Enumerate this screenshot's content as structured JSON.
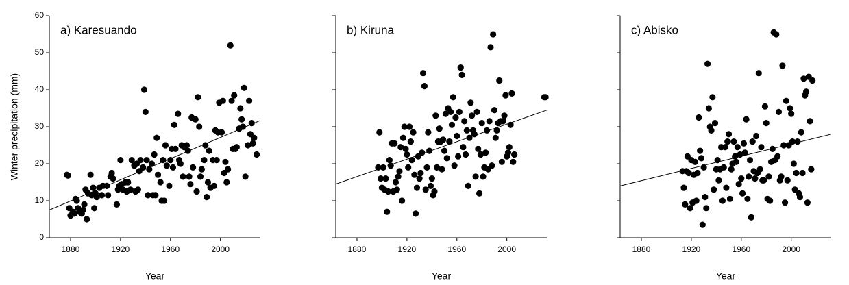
{
  "chart_data": [
    {
      "type": "scatter",
      "title": "a) Karesuando",
      "xlabel": "Year",
      "ylabel": "Winter precipitation (mm)",
      "color": "#000000",
      "show_ytick_labels": true,
      "xlim": [
        1863,
        2032
      ],
      "ylim": [
        0,
        60
      ],
      "xticks": [
        1880,
        1920,
        1960,
        2000
      ],
      "yticks": [
        0,
        10,
        20,
        30,
        40,
        50,
        60
      ],
      "x": [
        1877,
        1878,
        1879,
        1880,
        1882,
        1883,
        1884,
        1885,
        1886,
        1887,
        1889,
        1890,
        1891,
        1892,
        1893,
        1894,
        1896,
        1897,
        1898,
        1899,
        1900,
        1901,
        1903,
        1905,
        1906,
        1909,
        1910,
        1912,
        1913,
        1914,
        1917,
        1918,
        1919,
        1920,
        1921,
        1922,
        1924,
        1925,
        1926,
        1928,
        1929,
        1931,
        1932,
        1933,
        1934,
        1935,
        1936,
        1938,
        1939,
        1940,
        1941,
        1942,
        1943,
        1945,
        1946,
        1947,
        1948,
        1949,
        1950,
        1952,
        1953,
        1954,
        1955,
        1956,
        1957,
        1959,
        1960,
        1961,
        1962,
        1963,
        1964,
        1966,
        1967,
        1968,
        1969,
        1970,
        1971,
        1973,
        1974,
        1975,
        1976,
        1977,
        1978,
        1980,
        1981,
        1982,
        1983,
        1984,
        1985,
        1987,
        1988,
        1989,
        1990,
        1991,
        1992,
        1994,
        1995,
        1996,
        1997,
        1998,
        1999,
        2001,
        2002,
        2003,
        2004,
        2005,
        2006,
        2008,
        2009,
        2010,
        2011,
        2012,
        2013,
        2015,
        2016,
        2017,
        2018,
        2019,
        2020,
        2022,
        2023,
        2024,
        2025,
        2026,
        2027,
        2029
      ],
      "values": [
        17,
        16.8,
        8,
        6,
        7,
        6.5,
        10.5,
        10,
        8,
        7,
        6.5,
        7.5,
        9,
        13,
        5,
        12,
        17,
        11.5,
        13.5,
        8,
        12,
        11,
        13.5,
        11.5,
        14,
        14,
        11.5,
        16.5,
        17.5,
        16,
        9,
        13,
        14,
        21,
        14.5,
        13,
        15,
        12.5,
        15,
        13,
        21,
        19.5,
        12.5,
        20,
        13,
        18,
        21,
        19,
        40,
        34,
        21,
        11.5,
        18.5,
        20,
        11.5,
        22.5,
        11.5,
        27,
        17,
        15,
        10,
        21,
        10,
        25,
        19.5,
        14,
        21,
        24,
        19,
        30.5,
        24,
        33.5,
        21,
        20,
        25,
        16.5,
        24.5,
        25,
        23.5,
        16.5,
        14.5,
        32.5,
        19,
        32,
        12.5,
        38,
        30,
        16.5,
        18.5,
        21,
        25,
        11,
        15,
        23.5,
        13.5,
        21,
        14,
        29,
        21,
        28.5,
        36.5,
        28.5,
        37,
        17.5,
        20.5,
        15,
        18.5,
        52,
        37,
        24,
        38.5,
        24,
        24.5,
        29.5,
        35,
        32,
        30,
        40.5,
        16.5,
        25,
        37,
        28,
        31,
        25.5,
        27,
        22.5
      ],
      "trend": {
        "x": [
          1863,
          2032
        ],
        "y": [
          7.5,
          31.7
        ]
      }
    },
    {
      "type": "scatter",
      "title": "b) Kiruna",
      "xlabel": "Year",
      "color": "#000000",
      "show_ytick_labels": false,
      "xlim": [
        1863,
        2032
      ],
      "ylim": [
        0,
        60
      ],
      "xticks": [
        1880,
        1920,
        1960,
        2000
      ],
      "yticks": [
        0,
        10,
        20,
        30,
        40,
        50,
        60
      ],
      "x": [
        1897,
        1898,
        1899,
        1900,
        1901,
        1902,
        1903,
        1904,
        1905,
        1906,
        1907,
        1908,
        1909,
        1910,
        1911,
        1912,
        1913,
        1914,
        1915,
        1916,
        1917,
        1918,
        1919,
        1920,
        1921,
        1922,
        1923,
        1924,
        1925,
        1926,
        1927,
        1928,
        1929,
        1930,
        1931,
        1932,
        1933,
        1934,
        1935,
        1936,
        1937,
        1938,
        1939,
        1940,
        1941,
        1942,
        1943,
        1944,
        1945,
        1946,
        1947,
        1948,
        1949,
        1950,
        1951,
        1952,
        1953,
        1954,
        1955,
        1956,
        1957,
        1958,
        1959,
        1960,
        1961,
        1962,
        1963,
        1964,
        1965,
        1966,
        1967,
        1968,
        1969,
        1970,
        1971,
        1972,
        1973,
        1974,
        1975,
        1976,
        1977,
        1978,
        1979,
        1980,
        1981,
        1982,
        1983,
        1984,
        1985,
        1986,
        1987,
        1988,
        1989,
        1990,
        1991,
        1992,
        1993,
        1994,
        1995,
        1996,
        1997,
        1998,
        1999,
        2000,
        2001,
        2002,
        2003,
        2004,
        2005,
        2006,
        2030,
        2031
      ],
      "values": [
        19,
        28.5,
        16,
        13.5,
        19,
        13,
        16,
        7,
        12.5,
        21,
        19.5,
        25.5,
        12.5,
        25.5,
        15,
        13,
        16.5,
        18,
        24.5,
        10,
        27,
        30,
        24,
        22.5,
        19,
        30,
        26,
        21,
        28.5,
        17,
        6.5,
        13.5,
        22,
        16,
        17.5,
        23,
        44.5,
        41,
        13,
        19,
        28.5,
        23.5,
        14,
        16,
        11.5,
        12.5,
        33,
        19,
        26,
        29.5,
        26,
        18.5,
        26.5,
        23.5,
        33.5,
        21.5,
        35,
        26,
        34,
        30.5,
        38,
        19.5,
        32.5,
        27.5,
        22,
        34,
        46,
        44,
        24.5,
        31.5,
        22.5,
        29,
        14,
        27,
        36.5,
        33,
        29,
        28,
        16.5,
        34,
        24,
        12,
        22.5,
        31,
        16.5,
        19,
        23,
        29,
        18.5,
        31.5,
        51.5,
        19.5,
        55,
        34.5,
        27,
        29,
        31,
        42.5,
        31.5,
        20.5,
        31.5,
        33,
        38.5,
        22,
        23,
        24.5,
        30.5,
        39,
        20.5,
        22.5,
        38,
        38
      ],
      "trend": {
        "x": [
          1863,
          2032
        ],
        "y": [
          14.5,
          34.5
        ]
      }
    },
    {
      "type": "scatter",
      "title": "c) Abisko",
      "xlabel": "Year",
      "color": "#000000",
      "show_ytick_labels": false,
      "xlim": [
        1863,
        2032
      ],
      "ylim": [
        0,
        60
      ],
      "xticks": [
        1880,
        1920,
        1960,
        2000
      ],
      "yticks": [
        0,
        10,
        20,
        30,
        40,
        50,
        60
      ],
      "x": [
        1913,
        1914,
        1915,
        1916,
        1917,
        1918,
        1919,
        1920,
        1921,
        1922,
        1923,
        1924,
        1925,
        1926,
        1927,
        1928,
        1929,
        1930,
        1931,
        1932,
        1933,
        1934,
        1935,
        1936,
        1937,
        1938,
        1939,
        1940,
        1941,
        1942,
        1943,
        1944,
        1945,
        1946,
        1947,
        1948,
        1949,
        1950,
        1951,
        1952,
        1953,
        1954,
        1955,
        1956,
        1957,
        1958,
        1959,
        1960,
        1961,
        1962,
        1963,
        1964,
        1965,
        1966,
        1967,
        1968,
        1969,
        1970,
        1971,
        1972,
        1973,
        1974,
        1975,
        1976,
        1977,
        1978,
        1979,
        1980,
        1981,
        1982,
        1983,
        1984,
        1985,
        1986,
        1987,
        1988,
        1989,
        1990,
        1991,
        1992,
        1993,
        1994,
        1995,
        1996,
        1997,
        1998,
        1999,
        2000,
        2001,
        2002,
        2003,
        2004,
        2005,
        2006,
        2007,
        2008,
        2009,
        2010,
        2011,
        2012,
        2013,
        2014,
        2015,
        2016,
        2017
      ],
      "values": [
        18,
        13.5,
        9,
        18,
        22,
        17.5,
        8,
        21,
        9.5,
        17,
        20.5,
        10,
        17.5,
        32.5,
        23.5,
        21.5,
        3.5,
        19,
        11,
        8,
        47,
        35,
        30,
        29,
        38,
        13,
        31,
        18.5,
        21,
        15.5,
        18.5,
        24.5,
        10,
        19,
        24.5,
        13.5,
        26,
        28,
        10.5,
        18.5,
        20,
        26,
        22,
        20.5,
        24.5,
        14.5,
        22.5,
        16,
        12,
        25.5,
        23,
        32,
        10.5,
        16.5,
        21,
        5.5,
        26,
        18,
        16,
        27.5,
        17.5,
        44.5,
        18.5,
        24.5,
        15.5,
        15.5,
        35.5,
        31,
        10.5,
        16.5,
        10,
        20.5,
        24,
        55.5,
        21,
        55,
        22,
        34,
        15.5,
        16.5,
        46.5,
        25,
        9.5,
        37,
        15.5,
        25,
        35,
        33.5,
        26,
        20,
        13,
        17.5,
        26,
        12,
        11,
        28.5,
        17.5,
        43,
        38.5,
        39.5,
        9.5,
        43.5,
        31.5,
        18.5,
        42.5
      ],
      "trend": {
        "x": [
          1863,
          2032
        ],
        "y": [
          14,
          28
        ]
      }
    }
  ]
}
